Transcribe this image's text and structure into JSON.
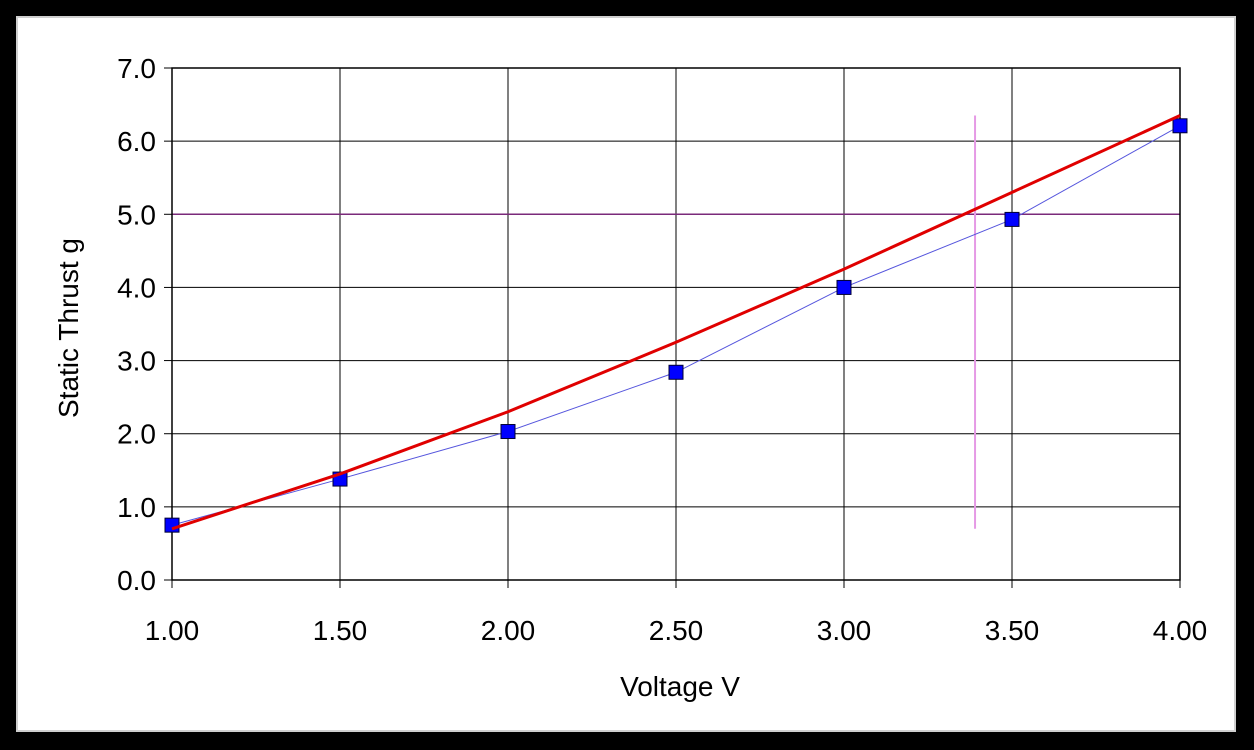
{
  "chart_data": {
    "type": "line",
    "title": "",
    "xlabel": "Voltage V",
    "ylabel": "Static Thrust g",
    "xlim": [
      1.0,
      4.0
    ],
    "ylim": [
      0.0,
      7.0
    ],
    "x_ticks": [
      1.0,
      1.5,
      2.0,
      2.5,
      3.0,
      3.5,
      4.0
    ],
    "x_tick_labels": [
      "1.00",
      "1.50",
      "2.00",
      "2.50",
      "3.00",
      "3.50",
      "4.00"
    ],
    "y_ticks": [
      0,
      1,
      2,
      3,
      4,
      5,
      6,
      7
    ],
    "y_tick_labels": [
      "0.0",
      "1.0",
      "2.0",
      "3.0",
      "4.0",
      "5.0",
      "6.0",
      "7.0"
    ],
    "grid": true,
    "legend": "none",
    "series": [
      {
        "kind": "markers-line",
        "color": "#0000ff",
        "line_color": "#5555dd",
        "marker": "square",
        "x": [
          1.0,
          1.5,
          2.0,
          2.5,
          3.0,
          3.5,
          4.0
        ],
        "y": [
          0.75,
          1.38,
          2.03,
          2.84,
          4.0,
          4.93,
          6.21
        ]
      },
      {
        "kind": "trendline",
        "color": "#e00000",
        "x": [
          1.0,
          1.5,
          2.0,
          2.5,
          3.0,
          3.5,
          4.0
        ],
        "y": [
          0.7,
          1.45,
          2.3,
          3.25,
          4.25,
          5.3,
          6.35
        ]
      }
    ],
    "reference_lines": [
      {
        "orientation": "horizontal",
        "y": 5.0,
        "color": "#7a2a7a"
      },
      {
        "orientation": "vertical",
        "x": 3.39,
        "y_range": [
          0.7,
          6.35
        ],
        "color": "#e59ae5"
      }
    ]
  }
}
